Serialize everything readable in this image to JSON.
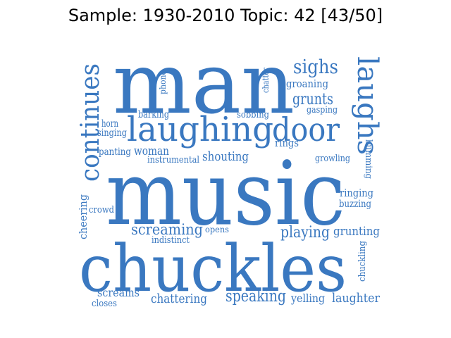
{
  "title": "Sample: 1930-2010 Topic: 42 [43/50]",
  "word_color": "#3a78c0",
  "words": [
    {
      "text": "man"
    },
    {
      "text": "music"
    },
    {
      "text": "chuckles"
    },
    {
      "text": "laughing"
    },
    {
      "text": "door"
    },
    {
      "text": "laughs"
    },
    {
      "text": "continues"
    },
    {
      "text": "sighs"
    },
    {
      "text": "groaning"
    },
    {
      "text": "grunts"
    },
    {
      "text": "gasping"
    },
    {
      "text": "chatter"
    },
    {
      "text": "phone"
    },
    {
      "text": "barking"
    },
    {
      "text": "sobbing"
    },
    {
      "text": "horn"
    },
    {
      "text": "singing"
    },
    {
      "text": "rings"
    },
    {
      "text": "panting"
    },
    {
      "text": "woman"
    },
    {
      "text": "shouting"
    },
    {
      "text": "instrumental"
    },
    {
      "text": "growling"
    },
    {
      "text": "humming"
    },
    {
      "text": "ringing"
    },
    {
      "text": "buzzing"
    },
    {
      "text": "cheering"
    },
    {
      "text": "crowd"
    },
    {
      "text": "screaming"
    },
    {
      "text": "opens"
    },
    {
      "text": "indistinct"
    },
    {
      "text": "playing"
    },
    {
      "text": "grunting"
    },
    {
      "text": "chuckling"
    },
    {
      "text": "screams"
    },
    {
      "text": "closes"
    },
    {
      "text": "chattering"
    },
    {
      "text": "speaking"
    },
    {
      "text": "yelling"
    },
    {
      "text": "laughter"
    }
  ]
}
